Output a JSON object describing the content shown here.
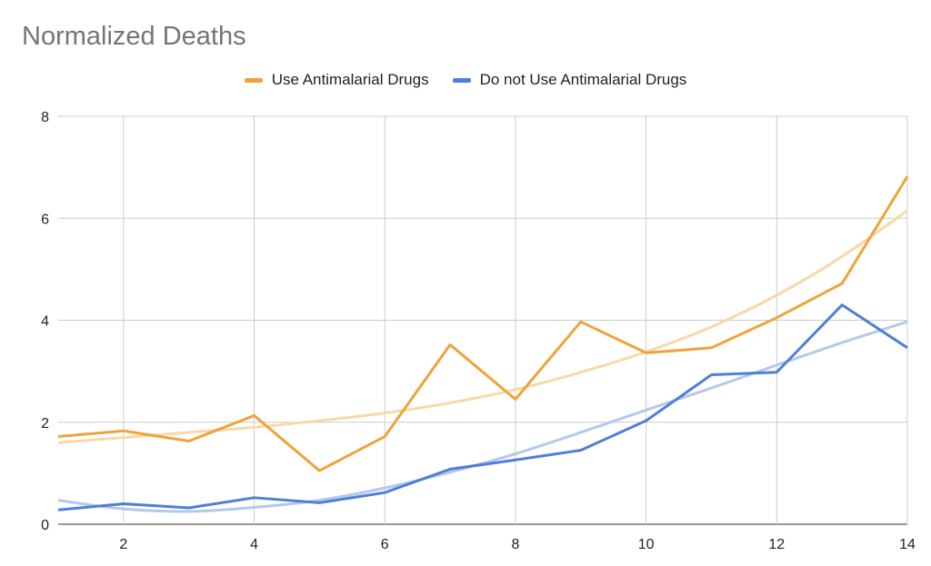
{
  "chart_data": {
    "type": "line",
    "title": "Normalized Deaths",
    "x": [
      1,
      2,
      3,
      4,
      5,
      6,
      7,
      8,
      9,
      10,
      11,
      12,
      13,
      14
    ],
    "xlim": [
      1,
      14
    ],
    "ylim": [
      0,
      8
    ],
    "x_ticks": [
      2,
      4,
      6,
      8,
      10,
      12,
      14
    ],
    "y_ticks": [
      0,
      2,
      4,
      6,
      8
    ],
    "grid": true,
    "legend_position": "top",
    "series": [
      {
        "name": "Use Antimalarial Drugs",
        "color": "#f0a33a",
        "values": [
          1.72,
          1.83,
          1.63,
          2.13,
          1.05,
          1.72,
          3.52,
          2.45,
          3.97,
          3.36,
          3.46,
          4.05,
          4.72,
          6.82
        ],
        "trendline": {
          "type": "exponential",
          "values": [
            1.6,
            1.7,
            1.8,
            1.9,
            2.03,
            2.18,
            2.38,
            2.64,
            2.98,
            3.38,
            3.87,
            4.49,
            5.25,
            6.15
          ],
          "color": "#f8d9a6"
        }
      },
      {
        "name": "Do not Use Antimalarial Drugs",
        "color": "#4f7fd6",
        "values": [
          0.28,
          0.4,
          0.32,
          0.52,
          0.42,
          0.62,
          1.08,
          1.26,
          1.45,
          2.03,
          2.93,
          2.98,
          4.3,
          3.46
        ],
        "trendline": {
          "type": "polynomial",
          "values": [
            0.47,
            0.3,
            0.25,
            0.33,
            0.47,
            0.71,
            1.02,
            1.38,
            1.8,
            2.24,
            2.67,
            3.12,
            3.56,
            3.97
          ],
          "color": "#b5c8ec"
        }
      }
    ]
  }
}
